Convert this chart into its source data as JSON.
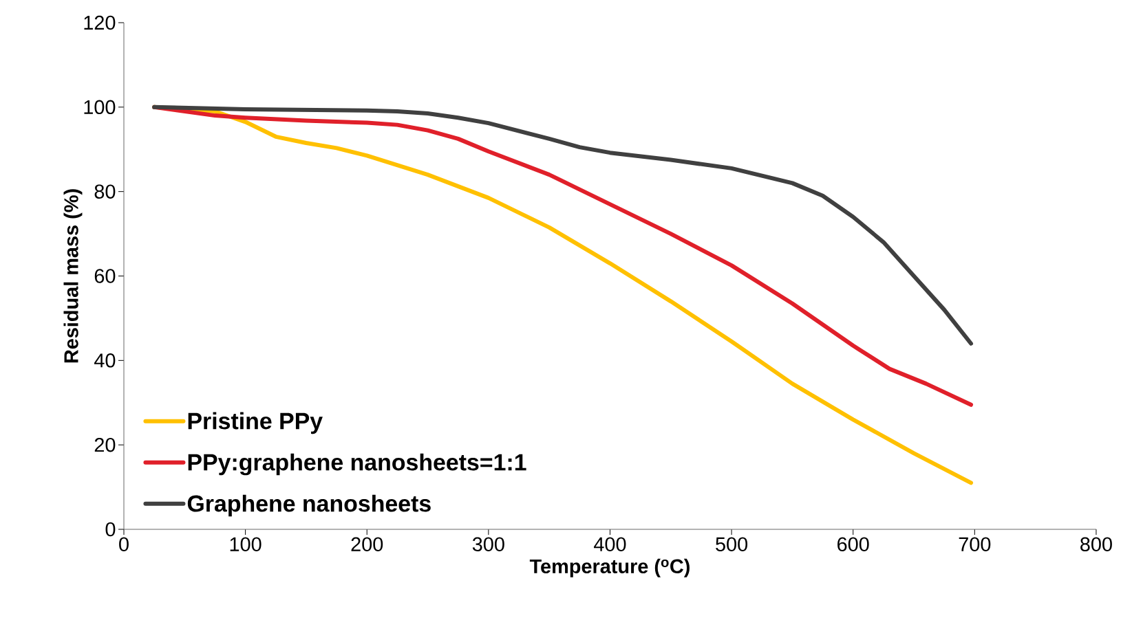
{
  "chart_data": {
    "type": "line",
    "xlabel": "Temperature ($^{o}$C)",
    "ylabel": "Residual mass (%)",
    "xlim": [
      0,
      800
    ],
    "xticks": [
      0,
      100,
      200,
      300,
      400,
      500,
      600,
      700,
      800
    ],
    "ylim": [
      0,
      120
    ],
    "yticks": [
      0,
      20,
      40,
      60,
      80,
      100,
      120
    ],
    "grid": false,
    "legend": "bottom left",
    "marker": "none",
    "line_style": "solid",
    "series": [
      {
        "name": "Pristine PPy",
        "color": "#ffc000",
        "x": [
          25,
          75,
          100,
          125,
          150,
          175,
          200,
          250,
          300,
          350,
          400,
          450,
          500,
          550,
          600,
          650,
          697
        ],
        "values": [
          100,
          99,
          96.5,
          93,
          91.5,
          90.3,
          88.5,
          84,
          78.5,
          71.5,
          63,
          54,
          44.5,
          34.5,
          26,
          18,
          11
        ]
      },
      {
        "name": "PPy:graphene nanosheets=1:1",
        "color": "#e0202a",
        "x": [
          25,
          75,
          100,
          150,
          200,
          225,
          250,
          275,
          300,
          350,
          375,
          400,
          450,
          500,
          550,
          600,
          630,
          660,
          697
        ],
        "values": [
          100,
          98,
          97.5,
          96.8,
          96.3,
          95.8,
          94.5,
          92.5,
          89.5,
          84,
          80.5,
          77,
          70,
          62.5,
          53.5,
          43.5,
          38,
          34.5,
          29.5
        ]
      },
      {
        "name": "Graphene nanosheets",
        "color": "#404040",
        "x": [
          25,
          100,
          200,
          225,
          250,
          275,
          300,
          350,
          375,
          400,
          450,
          500,
          550,
          575,
          600,
          625,
          650,
          675,
          697
        ],
        "values": [
          100,
          99.5,
          99.2,
          99,
          98.5,
          97.5,
          96.2,
          92.5,
          90.5,
          89.2,
          87.5,
          85.5,
          82,
          79,
          74,
          68,
          60,
          52,
          44
        ]
      }
    ]
  }
}
